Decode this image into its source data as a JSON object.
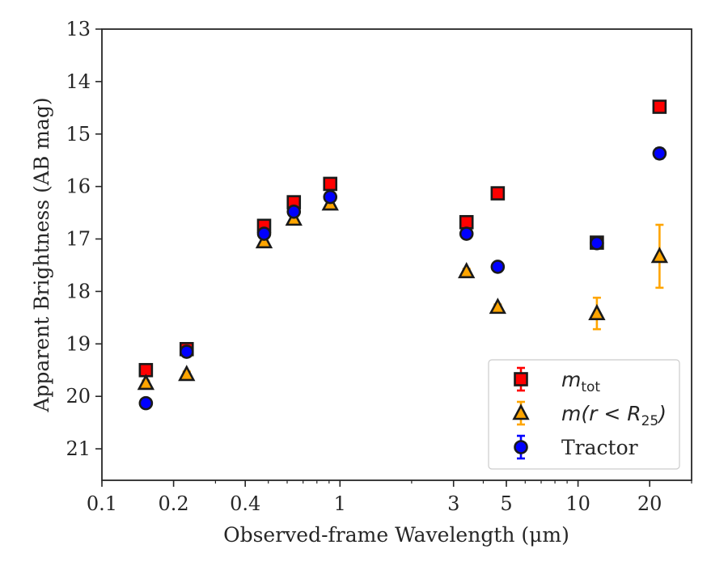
{
  "chart_data": {
    "type": "scatter",
    "title": "",
    "xlabel": "Observed-frame Wavelength (μm)",
    "ylabel": "Apparent Brightness (AB mag)",
    "xscale": "log",
    "xlim": [
      0.1,
      30
    ],
    "ylim": [
      21.6,
      13
    ],
    "y_inverted": true,
    "grid": false,
    "legend_position": "lower-right",
    "x_ticks": [
      0.1,
      0.2,
      0.4,
      1,
      3,
      5,
      10,
      20
    ],
    "x_tick_labels": [
      "0.1",
      "0.2",
      "0.4",
      "1",
      "3",
      "5",
      "10",
      "20"
    ],
    "y_ticks": [
      13,
      14,
      15,
      16,
      17,
      18,
      19,
      20,
      21
    ],
    "y_tick_labels": [
      "13",
      "14",
      "15",
      "16",
      "17",
      "18",
      "19",
      "20",
      "21"
    ],
    "series": [
      {
        "name": "m_tot",
        "legend_label": {
          "base": "m",
          "sub": "tot",
          "rest": ""
        },
        "marker": "square",
        "color": "#ff0000",
        "edge_color": "#1a1a1a",
        "error_color": "#ff0000",
        "points": [
          {
            "x": 0.153,
            "y": 19.5,
            "err": 0.05
          },
          {
            "x": 0.227,
            "y": 19.1,
            "err": 0.05
          },
          {
            "x": 0.48,
            "y": 16.75,
            "err": 0.05
          },
          {
            "x": 0.64,
            "y": 16.3,
            "err": 0.05
          },
          {
            "x": 0.91,
            "y": 15.95,
            "err": 0.05
          },
          {
            "x": 3.4,
            "y": 16.68,
            "err": 0.05
          },
          {
            "x": 4.6,
            "y": 16.13,
            "err": 0.05
          },
          {
            "x": 12.0,
            "y": 17.07,
            "err": 0.05
          },
          {
            "x": 22.0,
            "y": 14.48,
            "err": 0.05
          }
        ]
      },
      {
        "name": "m(r<R25)",
        "legend_label": {
          "base": "m(r < R",
          "sub": "25",
          "rest": ")"
        },
        "marker": "triangle",
        "color": "#ffa500",
        "edge_color": "#1a1a1a",
        "error_color": "#ffa500",
        "points": [
          {
            "x": 0.153,
            "y": 19.75,
            "err": 0.05
          },
          {
            "x": 0.227,
            "y": 19.58,
            "err": 0.05
          },
          {
            "x": 0.48,
            "y": 17.05,
            "err": 0.05
          },
          {
            "x": 0.64,
            "y": 16.62,
            "err": 0.05
          },
          {
            "x": 0.91,
            "y": 16.33,
            "err": 0.05
          },
          {
            "x": 3.4,
            "y": 17.62,
            "err": 0.05
          },
          {
            "x": 4.6,
            "y": 18.3,
            "err": 0.05
          },
          {
            "x": 12.0,
            "y": 18.42,
            "err": 0.3
          },
          {
            "x": 22.0,
            "y": 17.33,
            "err": 0.6
          }
        ]
      },
      {
        "name": "Tractor",
        "legend_label": {
          "base": "",
          "sub": "",
          "rest": "Tractor"
        },
        "marker": "circle",
        "color": "#0000ff",
        "edge_color": "#1a1a1a",
        "error_color": "#0000ff",
        "points": [
          {
            "x": 0.153,
            "y": 20.13,
            "err": 0.05
          },
          {
            "x": 0.227,
            "y": 19.15,
            "err": 0.05
          },
          {
            "x": 0.48,
            "y": 16.9,
            "err": 0.05
          },
          {
            "x": 0.64,
            "y": 16.48,
            "err": 0.05
          },
          {
            "x": 0.91,
            "y": 16.2,
            "err": 0.05
          },
          {
            "x": 3.4,
            "y": 16.9,
            "err": 0.05
          },
          {
            "x": 4.6,
            "y": 17.53,
            "err": 0.05
          },
          {
            "x": 12.0,
            "y": 17.08,
            "err": 0.05
          },
          {
            "x": 22.0,
            "y": 15.37,
            "err": 0.1
          }
        ]
      }
    ]
  }
}
